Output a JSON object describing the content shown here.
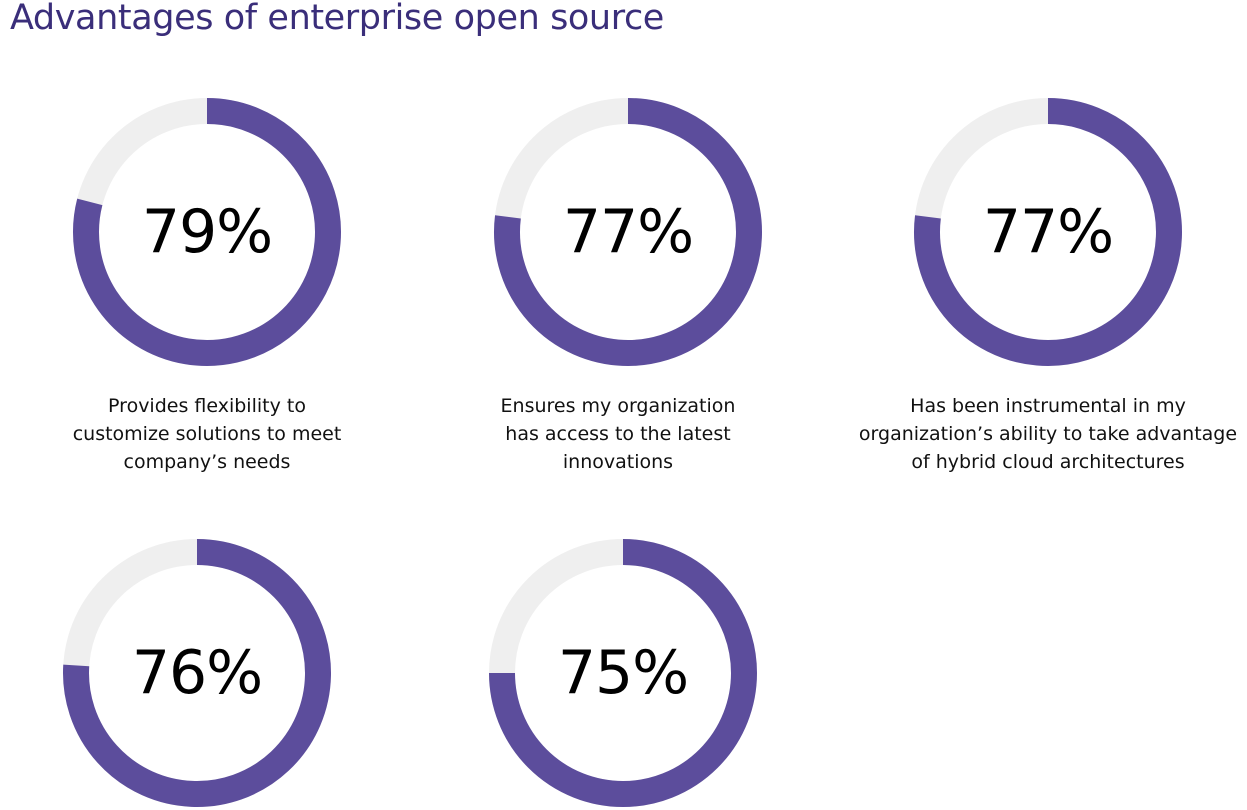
{
  "title": "Advantages of enterprise open source",
  "colors": {
    "accent": "#5c4d9c",
    "track": "#efefef",
    "title": "#3a2e7a"
  },
  "chart_data": [
    {
      "type": "pie",
      "value": 79,
      "label": "79%",
      "caption": [
        "Provides flexibility to",
        "customize solutions to meet",
        "company’s needs"
      ]
    },
    {
      "type": "pie",
      "value": 77,
      "label": "77%",
      "caption": [
        "Ensures my organization",
        "has access to the latest",
        "innovations"
      ]
    },
    {
      "type": "pie",
      "value": 77,
      "label": "77%",
      "caption": [
        "Has been instrumental in my",
        "organization’s ability to take advantage",
        "of hybrid cloud architectures"
      ]
    },
    {
      "type": "pie",
      "value": 76,
      "label": "76%",
      "caption": []
    },
    {
      "type": "pie",
      "value": 75,
      "label": "75%",
      "caption": []
    }
  ]
}
